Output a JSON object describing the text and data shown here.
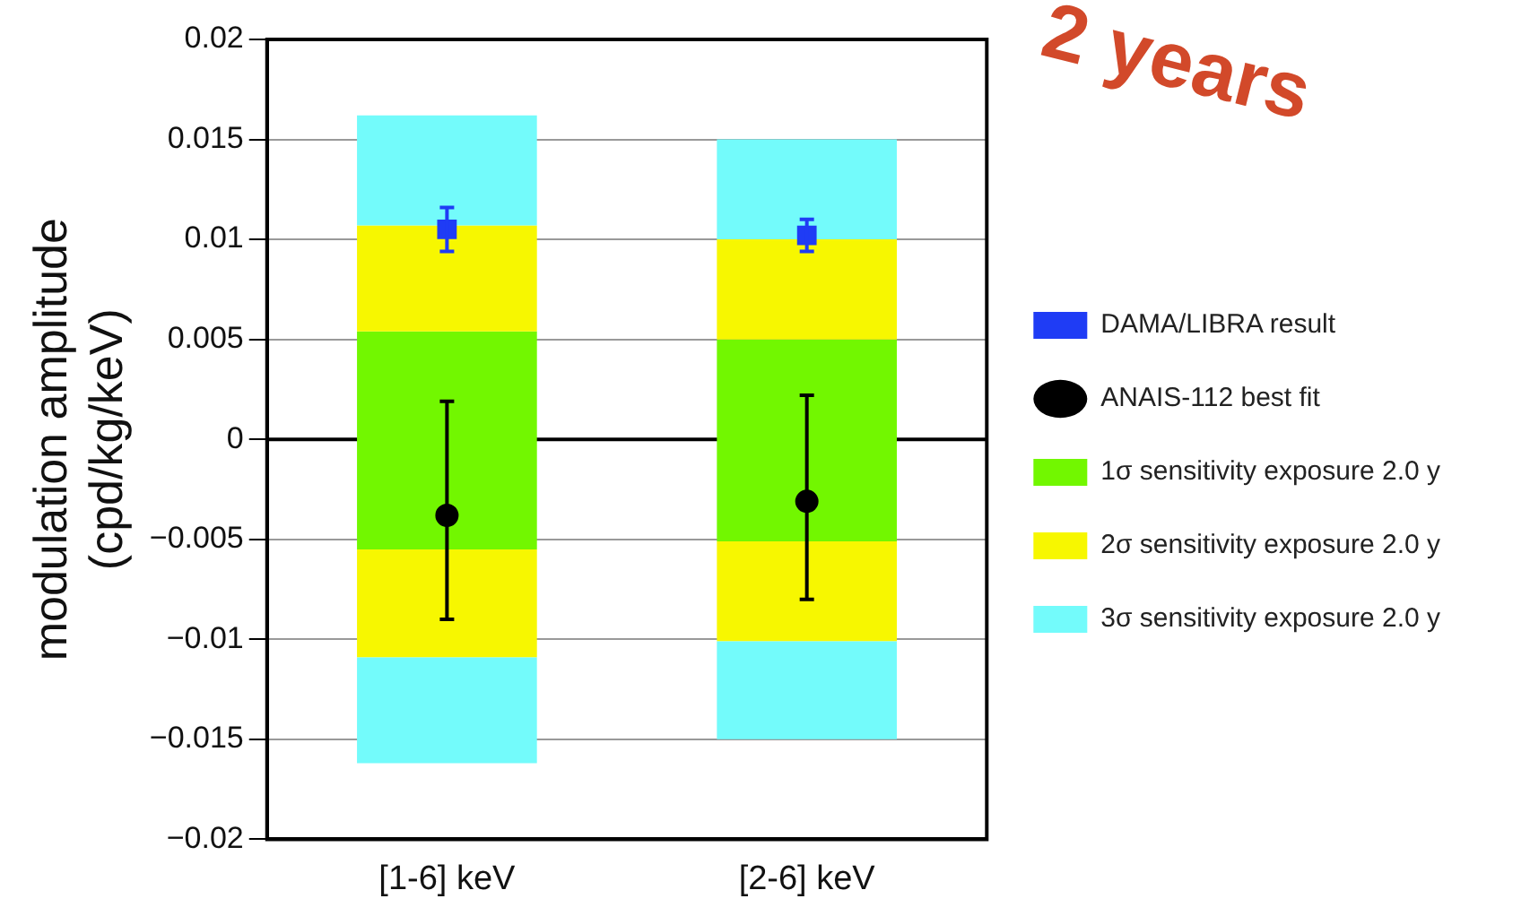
{
  "chart_data": {
    "type": "bar",
    "ylabel": "modulation amplitude\n(cpd/kg/keV)",
    "categories": [
      "[1-6] keV",
      "[2-6] keV"
    ],
    "series": [
      {
        "name": "3σ sensitivity exposure 2.0 y",
        "color": "#73fbfb",
        "base": [
          0.0107,
          0.01
        ],
        "values": [
          0.0055,
          0.005
        ]
      },
      {
        "color": "#73fbfb",
        "base": [
          -0.0162,
          -0.015
        ],
        "values": [
          0.0053,
          0.0049
        ]
      },
      {
        "name": "2σ sensitivity exposure 2.0 y",
        "color": "#f7f700",
        "base": [
          0.0054,
          0.005
        ],
        "values": [
          0.0053,
          0.005
        ]
      },
      {
        "color": "#f7f700",
        "base": [
          -0.0109,
          -0.0101
        ],
        "values": [
          0.0054,
          0.005
        ]
      },
      {
        "name": "1σ sensitivity exposure 2.0 y",
        "color": "#72f700",
        "base": [
          -0.0055,
          -0.0051
        ],
        "values": [
          0.0109,
          0.0101
        ]
      },
      {
        "name": "DAMA/LIBRA result",
        "type": "scatter",
        "marker": "square",
        "color": "#1f3cf5",
        "x": [
          "[1-6] keV",
          "[2-6] keV"
        ],
        "values": [
          0.0105,
          0.0102
        ],
        "errors": [
          0.0011,
          0.0008
        ]
      },
      {
        "name": "ANAIS-112 best fit",
        "type": "scatter",
        "marker": "circle",
        "color": "#000000",
        "x": [
          "[1-6] keV",
          "[2-6] keV"
        ],
        "values": [
          -0.0038,
          -0.0031
        ],
        "errors": [
          [
            -0.009,
            0.0019
          ],
          [
            -0.008,
            0.0022
          ]
        ]
      }
    ],
    "ylim": [
      -0.02,
      0.02
    ],
    "yticks": [
      {
        "value": -0.02,
        "label": "−0.02"
      },
      {
        "value": -0.015,
        "label": "−0.015"
      },
      {
        "value": -0.01,
        "label": "−0.01"
      },
      {
        "value": -0.005,
        "label": "−0.005"
      },
      0,
      0.005,
      0.01,
      0.015,
      0.02
    ],
    "grid": "y",
    "ref_lines": [
      {
        "axis": "y",
        "value": 0,
        "color": "#000000"
      }
    ],
    "legend": "right",
    "annotations": [
      "2 years"
    ]
  }
}
